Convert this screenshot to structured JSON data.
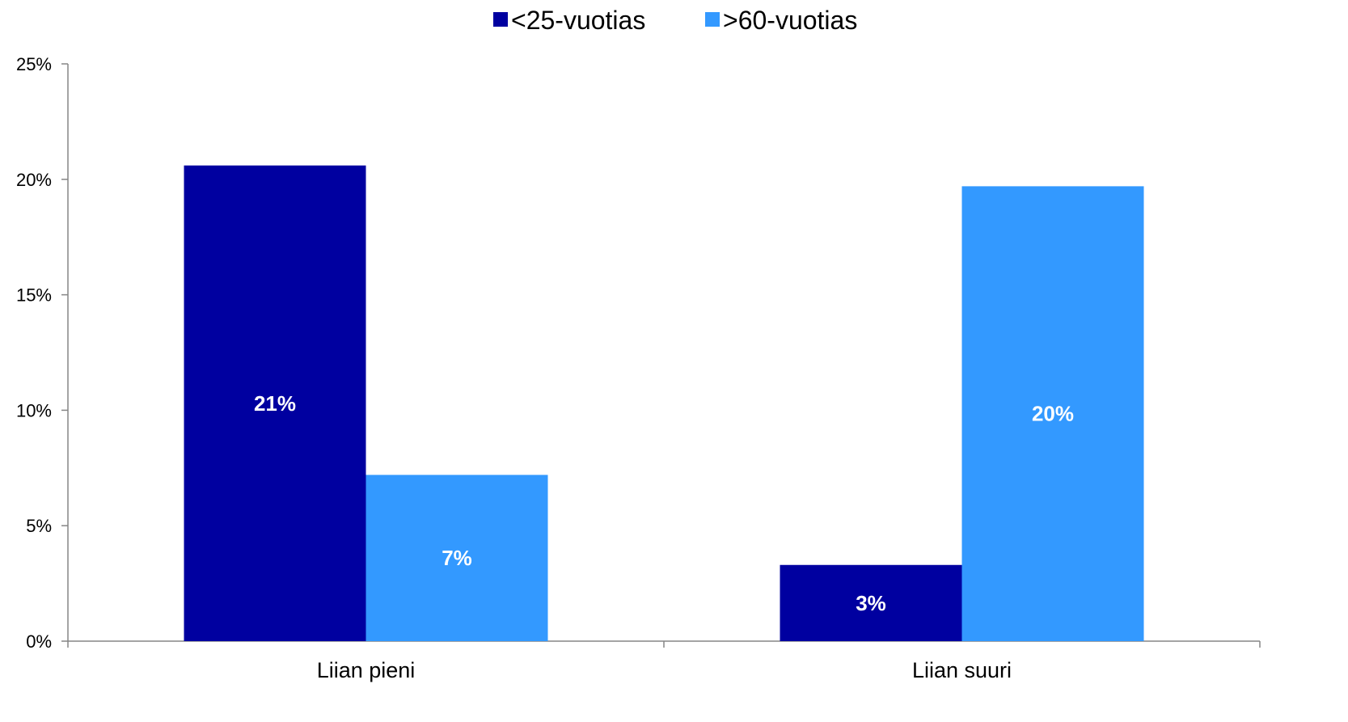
{
  "chart_data": {
    "type": "bar",
    "categories": [
      "Liian pieni",
      "Liian suuri"
    ],
    "series": [
      {
        "name": "<25-vuotias",
        "color": "#0000A0",
        "values": [
          20.6,
          3.3
        ],
        "labels": [
          "21%",
          "3%"
        ]
      },
      {
        "name": ">60-vuotias",
        "color": "#3399FF",
        "values": [
          7.2,
          19.7
        ],
        "labels": [
          "7%",
          "20%"
        ]
      }
    ],
    "ylim": [
      0,
      25
    ],
    "yticks": [
      0,
      5,
      10,
      15,
      20,
      25
    ],
    "ytick_labels": [
      "0%",
      "5%",
      "10%",
      "15%",
      "20%",
      "25%"
    ],
    "legend_position": "top-center",
    "grid": false,
    "xlabel": "",
    "ylabel": "",
    "title": ""
  }
}
